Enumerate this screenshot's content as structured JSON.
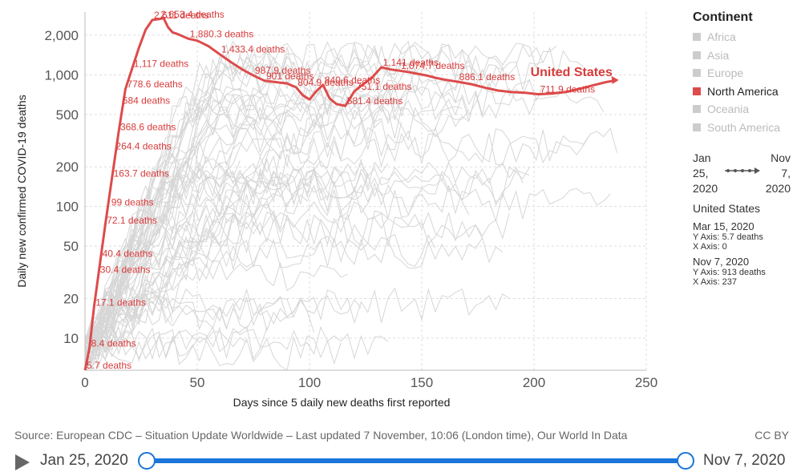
{
  "chart_data": {
    "type": "line",
    "ylabel": "Daily new confirmed COVID-19 deaths",
    "xlabel": "Days since 5 daily new deaths first reported",
    "yscale": "log",
    "ylim": [
      5.7,
      3000
    ],
    "xlim": [
      0,
      250
    ],
    "y_ticks": [
      10,
      20,
      50,
      100,
      200,
      500,
      1000,
      2000
    ],
    "y_tick_labels": [
      "10",
      "20",
      "50",
      "100",
      "200",
      "500",
      "1,000",
      "2,000"
    ],
    "x_ticks": [
      0,
      50,
      100,
      150,
      200,
      250
    ],
    "x_tick_labels": [
      "0",
      "50",
      "100",
      "150",
      "200",
      "250"
    ],
    "grid": true,
    "highlighted_series": {
      "name": "United States",
      "color": "#dd4b4b",
      "x": [
        0,
        2,
        4,
        6,
        9,
        12,
        15,
        18,
        21,
        24,
        27,
        30,
        33,
        35,
        37,
        39,
        41,
        43,
        46,
        50,
        55,
        60,
        65,
        70,
        75,
        80,
        85,
        90,
        94,
        97,
        100,
        103,
        106,
        109,
        112,
        116,
        120,
        124,
        128,
        132,
        136,
        140,
        144,
        148,
        152,
        156,
        160,
        166,
        172,
        178,
        184,
        190,
        196,
        202,
        208,
        214,
        220,
        226,
        232,
        237
      ],
      "y": [
        5.7,
        8.4,
        17.1,
        30.4,
        72.1,
        163.7,
        368.6,
        778.6,
        1117,
        1600,
        2200,
        2611,
        2653.4,
        2700,
        2300,
        2100,
        2050,
        1980,
        1880.3,
        1820,
        1650,
        1433.4,
        1250,
        1100,
        987.9,
        901,
        880,
        860,
        804.9,
        700,
        650,
        750,
        840.6,
        660,
        600,
        581.4,
        751.1,
        850,
        960,
        1141,
        1100,
        1074.7,
        1050,
        1020,
        990,
        950,
        920,
        886.1,
        850,
        800,
        760,
        740,
        730,
        711.9,
        720,
        740,
        780,
        830,
        880,
        913
      ]
    },
    "annotations": [
      {
        "x": 0,
        "y": 5.7,
        "label": "5.7 deaths"
      },
      {
        "x": 2,
        "y": 8.4,
        "label": "8.4 deaths"
      },
      {
        "x": 4,
        "y": 17.1,
        "label": "17.1 deaths"
      },
      {
        "x": 6,
        "y": 30.4,
        "label": "30.4 deaths"
      },
      {
        "x": 7,
        "y": 40.4,
        "label": "40.4 deaths"
      },
      {
        "x": 9,
        "y": 72.1,
        "label": "72.1 deaths"
      },
      {
        "x": 11,
        "y": 99,
        "label": "99 deaths"
      },
      {
        "x": 12,
        "y": 163.7,
        "label": "163.7 deaths"
      },
      {
        "x": 13,
        "y": 264.4,
        "label": "264.4 deaths"
      },
      {
        "x": 15,
        "y": 368.6,
        "label": "368.6 deaths"
      },
      {
        "x": 16,
        "y": 584,
        "label": "584 deaths"
      },
      {
        "x": 18,
        "y": 778.6,
        "label": "778.6 deaths"
      },
      {
        "x": 21,
        "y": 1117,
        "label": "1,117 deaths"
      },
      {
        "x": 30,
        "y": 2611,
        "label": "2,611 deaths"
      },
      {
        "x": 33,
        "y": 2653.4,
        "label": "2,653.4 deaths"
      },
      {
        "x": 46,
        "y": 1880.3,
        "label": "1,880.3 deaths"
      },
      {
        "x": 60,
        "y": 1433.4,
        "label": "1,433.4 deaths"
      },
      {
        "x": 75,
        "y": 987.9,
        "label": "987.9 deaths"
      },
      {
        "x": 80,
        "y": 901,
        "label": "901 deaths"
      },
      {
        "x": 94,
        "y": 804.9,
        "label": "804.9 deaths"
      },
      {
        "x": 106,
        "y": 840.6,
        "label": "840.6 deaths"
      },
      {
        "x": 116,
        "y": 581.4,
        "label": "581.4 deaths"
      },
      {
        "x": 120,
        "y": 751.1,
        "label": "751.1 deaths"
      },
      {
        "x": 132,
        "y": 1141,
        "label": "1,141 deaths"
      },
      {
        "x": 140,
        "y": 1074.7,
        "label": "1,074.7 deaths"
      },
      {
        "x": 166,
        "y": 886.1,
        "label": "886.1 deaths"
      },
      {
        "x": 202,
        "y": 711.9,
        "label": "711.9 deaths"
      }
    ],
    "background_color": "#d6d6d6"
  },
  "legend": {
    "title": "Continent",
    "items": [
      {
        "label": "Africa",
        "active": false
      },
      {
        "label": "Asia",
        "active": false
      },
      {
        "label": "Europe",
        "active": false
      },
      {
        "label": "North America",
        "active": true
      },
      {
        "label": "Oceania",
        "active": false
      },
      {
        "label": "South America",
        "active": false
      }
    ]
  },
  "time_range": {
    "start": "Jan 25, 2020",
    "end": "Nov 7, 2020"
  },
  "tooltip": {
    "title": "United States",
    "points": [
      {
        "date": "Mar 15, 2020",
        "y": "Y Axis: 5.7 deaths",
        "x": "X Axis: 0"
      },
      {
        "date": "Nov 7, 2020",
        "y": "Y Axis: 913 deaths",
        "x": "X Axis: 237"
      }
    ]
  },
  "footer": {
    "source": "Source: European CDC – Situation Update Worldwide – Last updated 7 November, 10:06 (London time), Our World In Data",
    "license": "CC BY"
  },
  "timeline": {
    "start_label": "Jan 25, 2020",
    "end_label": "Nov 7, 2020"
  }
}
